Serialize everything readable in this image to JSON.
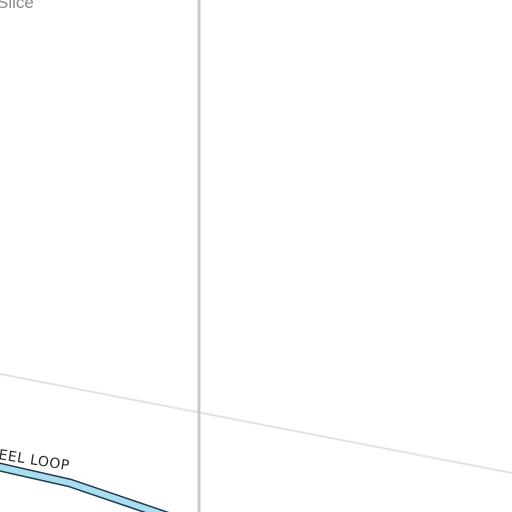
{
  "map": {
    "place_label": "Slice",
    "road_label": "EEL LOOP",
    "colors": {
      "background": "#ffffff",
      "grid_vertical": "#c8c8c8",
      "grid_diagonal": "#e3e3e3",
      "road_fill": "#a9def0",
      "road_casing": "#1f3a4a",
      "label_text": "#2a2a2a",
      "place_text": "#8a8a8a"
    }
  }
}
